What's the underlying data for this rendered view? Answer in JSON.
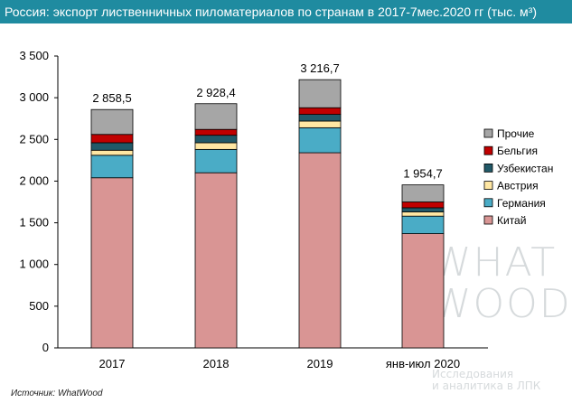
{
  "header": {
    "title": "Россия: экспорт лиственничных пиломатериалов по странам в 2017-7мес.2020 гг (тыс. м³)"
  },
  "source": "Источник: WhatWood",
  "watermark": {
    "line1": "WHAT",
    "line2": "WOOD",
    "line3": "Исследования",
    "line4": "и аналитика в ЛПК"
  },
  "colors": {
    "title_bg": "#1f8ba0",
    "Китай": "#d99594",
    "Германия": "#4aacc6",
    "Австрия": "#ffe7a3",
    "Узбекистан": "#215968",
    "Бельгия": "#c00000",
    "Прочие": "#a6a6a6"
  },
  "chart_data": {
    "type": "bar",
    "stacked": true,
    "categories": [
      "2017",
      "2018",
      "2019",
      "янв-июл 2020"
    ],
    "series": [
      {
        "name": "Китай",
        "values": [
          2040,
          2100,
          2340,
          1370
        ]
      },
      {
        "name": "Германия",
        "values": [
          270,
          280,
          300,
          210
        ]
      },
      {
        "name": "Австрия",
        "values": [
          60,
          80,
          80,
          50
        ]
      },
      {
        "name": "Узбекистан",
        "values": [
          90,
          90,
          80,
          50
        ]
      },
      {
        "name": "Бельгия",
        "values": [
          100,
          70,
          80,
          70
        ]
      },
      {
        "name": "Прочие",
        "values": [
          298.5,
          308.4,
          336.7,
          204.7
        ]
      }
    ],
    "totals": [
      2858.5,
      2928.4,
      3216.7,
      1954.7
    ],
    "total_labels": [
      "2 858,5",
      "2 928,4",
      "3 216,7",
      "1 954,7"
    ],
    "ylim": [
      0,
      3500
    ],
    "yticks": [
      0,
      500,
      1000,
      1500,
      2000,
      2500,
      3000,
      3500
    ],
    "ytick_labels": [
      "0",
      "500",
      "1 000",
      "1 500",
      "2 000",
      "2 500",
      "3 000",
      "3 500"
    ],
    "legend": [
      "Прочие",
      "Бельгия",
      "Узбекистан",
      "Австрия",
      "Германия",
      "Китай"
    ],
    "legend_position": "right",
    "grid": false
  }
}
